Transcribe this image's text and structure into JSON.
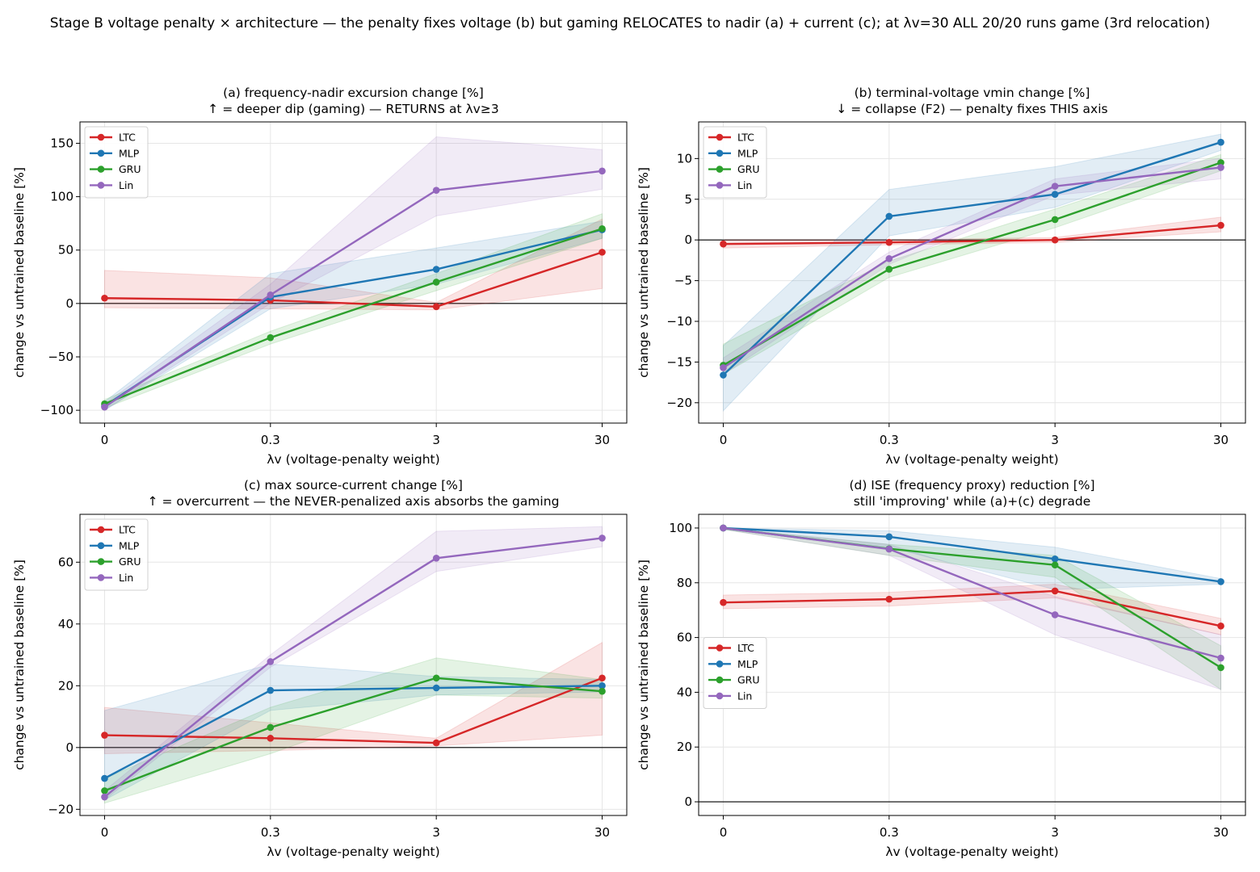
{
  "suptitle": "Stage B voltage penalty × architecture — the penalty fixes voltage (b) but gaming RELOCATES to nadir (a) + current (c); at λv=30 ALL 20/20 runs game (3rd relocation)",
  "colors": {
    "LTC": "#d62728",
    "MLP": "#1f77b4",
    "GRU": "#2ca02c",
    "Lin": "#9467bd"
  },
  "chart_data": [
    {
      "type": "line",
      "title": "(a) frequency-nadir excursion change [%]",
      "subtitle": "↑ = deeper dip (gaming) — RETURNS at λv≥3",
      "xlabel": "λv (voltage-penalty weight)",
      "ylabel": "change vs untrained baseline [%]",
      "categories": [
        "0",
        "0.3",
        "3",
        "30"
      ],
      "ylim": [
        -112,
        170
      ],
      "yticks": [
        -100,
        -50,
        0,
        50,
        100,
        150
      ],
      "legend_position": "upper-left",
      "grid": true,
      "series": [
        {
          "name": "LTC",
          "values": [
            5,
            3,
            -3,
            48
          ],
          "lower": [
            -4,
            -5,
            -6,
            14
          ],
          "upper": [
            31,
            24,
            1,
            79
          ]
        },
        {
          "name": "MLP",
          "values": [
            -96,
            6,
            32,
            69
          ],
          "lower": [
            -100,
            -5,
            18,
            61
          ],
          "upper": [
            -92,
            28,
            52,
            77
          ]
        },
        {
          "name": "GRU",
          "values": [
            -94,
            -32,
            20,
            70
          ],
          "lower": [
            -98,
            -38,
            12,
            61
          ],
          "upper": [
            -90,
            -26,
            28,
            84
          ]
        },
        {
          "name": "Lin",
          "values": [
            -97,
            8,
            106,
            124
          ],
          "lower": [
            -100,
            0,
            82,
            107
          ],
          "upper": [
            -94,
            18,
            156,
            144
          ]
        }
      ]
    },
    {
      "type": "line",
      "title": "(b) terminal-voltage vmin change [%]",
      "subtitle": "↓ = collapse (F2) — penalty fixes THIS axis",
      "xlabel": "λv (voltage-penalty weight)",
      "ylabel": "change vs untrained baseline [%]",
      "categories": [
        "0",
        "0.3",
        "3",
        "30"
      ],
      "ylim": [
        -22.5,
        14.5
      ],
      "yticks": [
        -20,
        -15,
        -10,
        -5,
        0,
        5,
        10
      ],
      "legend_position": "upper-left",
      "grid": true,
      "series": [
        {
          "name": "LTC",
          "values": [
            -0.5,
            -0.3,
            0,
            1.8
          ],
          "lower": [
            -1.0,
            -0.6,
            -0.3,
            1.0
          ],
          "upper": [
            0.0,
            0.0,
            0.3,
            2.8
          ]
        },
        {
          "name": "MLP",
          "values": [
            -16.6,
            2.9,
            5.6,
            12
          ],
          "lower": [
            -21,
            0.5,
            4.0,
            11
          ],
          "upper": [
            -13,
            6.2,
            9.0,
            13
          ]
        },
        {
          "name": "GRU",
          "values": [
            -15.4,
            -3.6,
            2.5,
            9.5
          ],
          "lower": [
            -16.5,
            -4.6,
            1.5,
            8.5
          ],
          "upper": [
            -12.8,
            -2.6,
            3.8,
            10.5
          ]
        },
        {
          "name": "Lin",
          "values": [
            -15.7,
            -2.3,
            6.6,
            8.9
          ],
          "lower": [
            -16.5,
            -3.0,
            5.5,
            7.5
          ],
          "upper": [
            -14.5,
            -1.5,
            7.5,
            10.0
          ]
        }
      ]
    },
    {
      "type": "line",
      "title": "(c) max source-current change [%]",
      "subtitle": "↑ = overcurrent — the NEVER-penalized axis absorbs the gaming",
      "xlabel": "λv (voltage-penalty weight)",
      "ylabel": "change vs untrained baseline [%]",
      "categories": [
        "0",
        "0.3",
        "3",
        "30"
      ],
      "ylim": [
        -22,
        75.5
      ],
      "yticks": [
        -20,
        0,
        20,
        40,
        60
      ],
      "legend_position": "upper-left",
      "grid": true,
      "series": [
        {
          "name": "LTC",
          "values": [
            4,
            3,
            1.5,
            22.5
          ],
          "lower": [
            -2,
            -1,
            0.5,
            4
          ],
          "upper": [
            13,
            8,
            3,
            34
          ]
        },
        {
          "name": "MLP",
          "values": [
            -10,
            18.5,
            19.3,
            20
          ],
          "lower": [
            -17,
            12,
            17,
            18
          ],
          "upper": [
            12,
            27,
            23,
            22
          ]
        },
        {
          "name": "GRU",
          "values": [
            -14,
            6.5,
            22.5,
            18.2
          ],
          "lower": [
            -18,
            -2,
            17,
            16
          ],
          "upper": [
            -10,
            13,
            29,
            22
          ]
        },
        {
          "name": "Lin",
          "values": [
            -16,
            27.8,
            61.3,
            67.8
          ],
          "lower": [
            -17,
            26,
            57,
            65
          ],
          "upper": [
            -14,
            30,
            70,
            71.5
          ]
        }
      ]
    },
    {
      "type": "line",
      "title": "(d) ISE (frequency proxy) reduction [%]",
      "subtitle": "still 'improving' while (a)+(c) degrade",
      "xlabel": "λv (voltage-penalty weight)",
      "ylabel": "change vs untrained baseline [%]",
      "categories": [
        "0",
        "0.3",
        "3",
        "30"
      ],
      "ylim": [
        -5,
        105
      ],
      "yticks": [
        0,
        20,
        40,
        60,
        80,
        100
      ],
      "legend_position": "center-left",
      "grid": true,
      "series": [
        {
          "name": "LTC",
          "values": [
            72.8,
            74,
            77,
            64.2
          ],
          "lower": [
            70.5,
            71.5,
            74.5,
            61
          ],
          "upper": [
            75.5,
            76.5,
            79.5,
            67
          ]
        },
        {
          "name": "MLP",
          "values": [
            100,
            96.8,
            88.7,
            80.4
          ],
          "lower": [
            99.5,
            93,
            77.5,
            79.5
          ],
          "upper": [
            100,
            99,
            93,
            81.5
          ]
        },
        {
          "name": "GRU",
          "values": [
            100,
            92.4,
            86.5,
            49
          ],
          "lower": [
            99.5,
            90,
            82,
            41
          ],
          "upper": [
            100,
            94,
            90,
            57
          ]
        },
        {
          "name": "Lin",
          "values": [
            100,
            92.3,
            68.3,
            52.5
          ],
          "lower": [
            99.5,
            90,
            61,
            41
          ],
          "upper": [
            100,
            94,
            75,
            61
          ]
        }
      ]
    }
  ]
}
